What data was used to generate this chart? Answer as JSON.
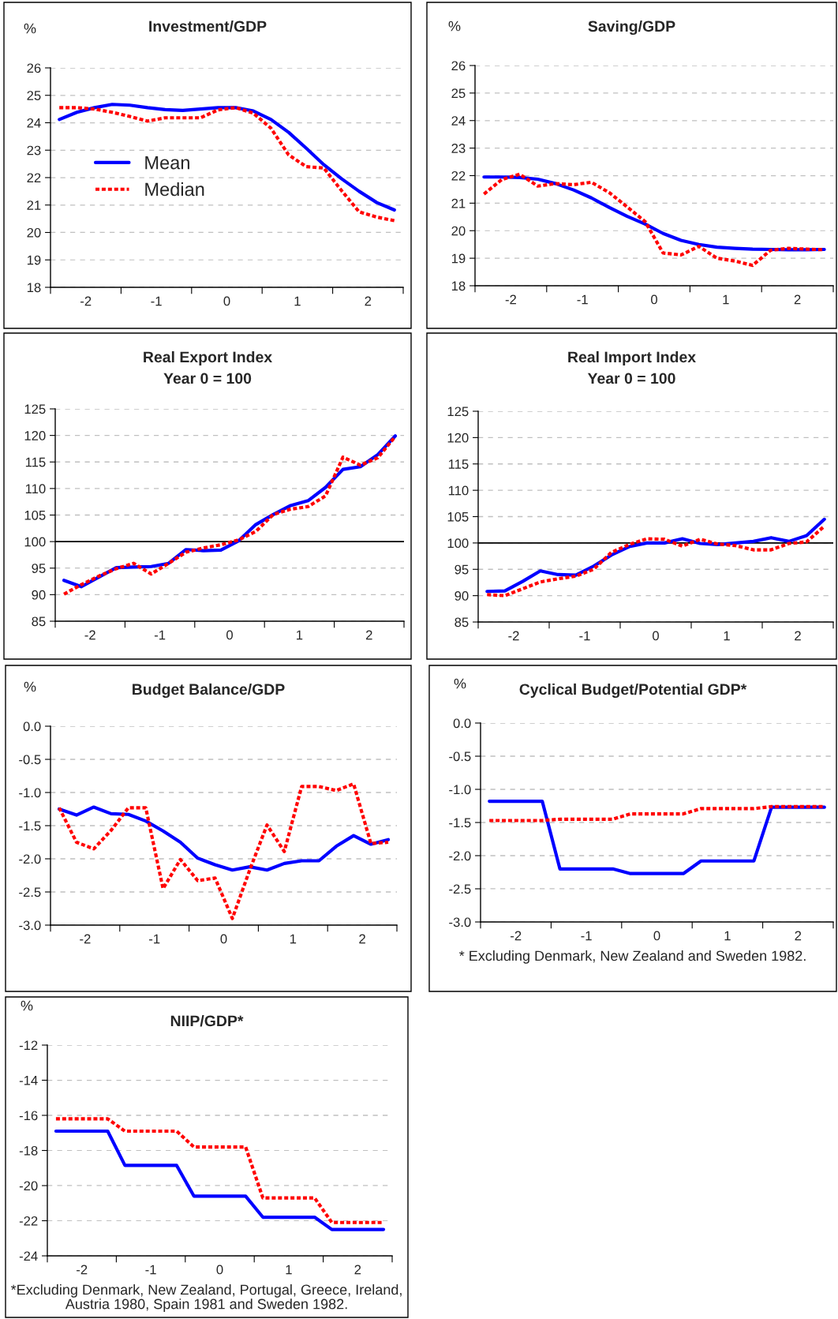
{
  "chart_data": [
    {
      "type": "line",
      "title": "Investment/GDP",
      "ylabel": "%",
      "legend": "center left",
      "grid": "y",
      "x": [
        -2.375,
        -2.125,
        -1.875,
        -1.625,
        -1.375,
        -1.125,
        -0.875,
        -0.625,
        -0.375,
        -0.125,
        0.125,
        0.375,
        0.625,
        0.875,
        1.125,
        1.375,
        1.625,
        1.875,
        2.125,
        2.375
      ],
      "xlim": [
        -2.5,
        2.5
      ],
      "xticks": [
        {
          "value": -2.5,
          "label": null
        },
        {
          "value": -1.5,
          "label": null
        },
        {
          "value": -0.5,
          "label": null
        },
        {
          "value": 0.5,
          "label": null
        },
        {
          "value": 1.5,
          "label": null
        },
        {
          "value": 2.5,
          "label": null
        },
        -2,
        -1,
        0,
        1,
        2
      ],
      "ylim": [
        18,
        26
      ],
      "yticks": [
        18,
        19,
        20,
        21,
        22,
        23,
        24,
        25,
        26
      ],
      "series": [
        {
          "name": "Mean",
          "color": "#0000ff",
          "line_style": "solid",
          "values": [
            24.12,
            24.38,
            24.55,
            24.67,
            24.64,
            24.55,
            24.48,
            24.45,
            24.5,
            24.55,
            24.55,
            24.43,
            24.12,
            23.65,
            23.07,
            22.47,
            21.96,
            21.5,
            21.09,
            20.82
          ]
        },
        {
          "name": "Median",
          "color": "#ff0000",
          "line_style": "dashed",
          "values": [
            24.55,
            24.55,
            24.5,
            24.38,
            24.23,
            24.06,
            24.18,
            24.18,
            24.18,
            24.47,
            24.55,
            24.35,
            23.8,
            22.83,
            22.4,
            22.35,
            21.53,
            20.75,
            20.56,
            20.43
          ]
        }
      ]
    },
    {
      "type": "line",
      "title": "Saving/GDP",
      "ylabel": "%",
      "grid": "y",
      "x": [
        -2.375,
        -2.125,
        -1.875,
        -1.625,
        -1.375,
        -1.125,
        -0.875,
        -0.625,
        -0.375,
        -0.125,
        0.125,
        0.375,
        0.625,
        0.875,
        1.125,
        1.375,
        1.625,
        1.875,
        2.125,
        2.375
      ],
      "xlim": [
        -2.5,
        2.5
      ],
      "xticks": [
        {
          "value": -2.5,
          "label": null
        },
        {
          "value": -1.5,
          "label": null
        },
        {
          "value": -0.5,
          "label": null
        },
        {
          "value": 0.5,
          "label": null
        },
        {
          "value": 1.5,
          "label": null
        },
        {
          "value": 2.5,
          "label": null
        },
        -2,
        -1,
        0,
        1,
        2
      ],
      "ylim": [
        18,
        26
      ],
      "yticks": [
        18,
        19,
        20,
        21,
        22,
        23,
        24,
        25,
        26
      ],
      "series": [
        {
          "color": "#0000ff",
          "line_style": "solid",
          "values": [
            21.95,
            21.95,
            21.93,
            21.87,
            21.71,
            21.48,
            21.19,
            20.84,
            20.52,
            20.24,
            19.9,
            19.65,
            19.5,
            19.4,
            19.36,
            19.33,
            19.32,
            19.31,
            19.31,
            19.32
          ]
        },
        {
          "color": "#ff0000",
          "line_style": "dashed",
          "values": [
            21.33,
            21.86,
            22.05,
            21.62,
            21.71,
            21.67,
            21.76,
            21.38,
            20.86,
            20.33,
            19.19,
            19.12,
            19.43,
            19.0,
            18.9,
            18.74,
            19.29,
            19.36,
            19.33,
            19.31
          ]
        }
      ]
    },
    {
      "type": "line",
      "title": "Real Export Index",
      "subtitle": "Year 0 = 100",
      "grid": "y",
      "x": [
        -2.375,
        -2.125,
        -1.875,
        -1.625,
        -1.375,
        -1.125,
        -0.875,
        -0.625,
        -0.375,
        -0.125,
        0.125,
        0.375,
        0.625,
        0.875,
        1.125,
        1.375,
        1.625,
        1.875,
        2.125,
        2.375
      ],
      "xlim": [
        -2.5,
        2.5
      ],
      "xticks": [
        {
          "value": -2.5,
          "label": null
        },
        {
          "value": -1.5,
          "label": null
        },
        {
          "value": -0.5,
          "label": null
        },
        {
          "value": 0.5,
          "label": null
        },
        {
          "value": 1.5,
          "label": null
        },
        {
          "value": 2.5,
          "label": null
        },
        -2,
        -1,
        0,
        1,
        2
      ],
      "ylim": [
        85,
        125
      ],
      "yticks": [
        85,
        90,
        95,
        100,
        105,
        110,
        115,
        120,
        125
      ],
      "ref_lines": [
        {
          "axis": "y",
          "value": 100,
          "color": "#000000"
        }
      ],
      "series": [
        {
          "color": "#0000ff",
          "line_style": "solid",
          "values": [
            92.7,
            91.5,
            93.3,
            95.1,
            95.2,
            95.3,
            95.9,
            98.5,
            98.3,
            98.4,
            100.1,
            103.2,
            105.1,
            106.8,
            107.7,
            110.2,
            113.6,
            114.1,
            116.4,
            119.9
          ]
        },
        {
          "color": "#ff0000",
          "line_style": "dashed",
          "values": [
            90.1,
            91.9,
            93.5,
            94.9,
            95.9,
            93.9,
            95.9,
            98.0,
            98.8,
            99.4,
            100.3,
            101.9,
            105.1,
            106.1,
            106.6,
            108.6,
            115.9,
            114.4,
            115.8,
            119.8
          ]
        }
      ]
    },
    {
      "type": "line",
      "title": "Real Import Index",
      "subtitle": "Year 0 = 100",
      "grid": "y",
      "x": [
        -2.375,
        -2.125,
        -1.875,
        -1.625,
        -1.375,
        -1.125,
        -0.875,
        -0.625,
        -0.375,
        -0.125,
        0.125,
        0.375,
        0.625,
        0.875,
        1.125,
        1.375,
        1.625,
        1.875,
        2.125,
        2.375
      ],
      "xlim": [
        -2.5,
        2.5
      ],
      "xticks": [
        {
          "value": -2.5,
          "label": null
        },
        {
          "value": -1.5,
          "label": null
        },
        {
          "value": -0.5,
          "label": null
        },
        {
          "value": 0.5,
          "label": null
        },
        {
          "value": 1.5,
          "label": null
        },
        {
          "value": 2.5,
          "label": null
        },
        -2,
        -1,
        0,
        1,
        2
      ],
      "ylim": [
        85,
        125
      ],
      "yticks": [
        85,
        90,
        95,
        100,
        105,
        110,
        115,
        120,
        125
      ],
      "ref_lines": [
        {
          "axis": "y",
          "value": 100,
          "color": "#000000"
        }
      ],
      "series": [
        {
          "color": "#0000ff",
          "line_style": "solid",
          "values": [
            90.8,
            90.9,
            92.7,
            94.7,
            94.0,
            93.9,
            95.6,
            97.7,
            99.3,
            100,
            100,
            100.8,
            99.9,
            99.7,
            100,
            100.3,
            101,
            100.3,
            101.4,
            104.5
          ]
        },
        {
          "color": "#ff0000",
          "line_style": "dashed",
          "values": [
            90.2,
            90.0,
            91.3,
            92.6,
            93.2,
            93.7,
            95.0,
            98.2,
            99.7,
            100.8,
            100.7,
            99.4,
            100.7,
            99.8,
            99.5,
            98.7,
            98.7,
            99.9,
            100.2,
            103.2
          ]
        }
      ]
    },
    {
      "type": "line",
      "title": "Budget Balance/GDP",
      "ylabel": "%",
      "grid": "y",
      "x": [
        -2.375,
        -2.125,
        -1.875,
        -1.625,
        -1.375,
        -1.125,
        -0.875,
        -0.625,
        -0.375,
        -0.125,
        0.125,
        0.375,
        0.625,
        0.875,
        1.125,
        1.375,
        1.625,
        1.875,
        2.125,
        2.375
      ],
      "xlim": [
        -2.5,
        2.5
      ],
      "xticks": [
        {
          "value": -2.5,
          "label": null
        },
        {
          "value": -1.5,
          "label": null
        },
        {
          "value": -0.5,
          "label": null
        },
        {
          "value": 0.5,
          "label": null
        },
        {
          "value": 1.5,
          "label": null
        },
        {
          "value": 2.5,
          "label": null
        },
        -2,
        -1,
        0,
        1,
        2
      ],
      "ylim": [
        -3,
        0
      ],
      "yticks": [
        {
          "value": -3,
          "label": "-3.0"
        },
        {
          "value": -2.5,
          "label": "-2.5"
        },
        {
          "value": -2,
          "label": "-2.0"
        },
        {
          "value": -1.5,
          "label": "-1.5"
        },
        {
          "value": -1,
          "label": "-1.0"
        },
        {
          "value": -0.5,
          "label": "-0.5"
        },
        {
          "value": 0,
          "label": "0.0"
        }
      ],
      "series": [
        {
          "color": "#0000ff",
          "line_style": "solid",
          "values": [
            -1.25,
            -1.34,
            -1.22,
            -1.32,
            -1.33,
            -1.43,
            -1.58,
            -1.75,
            -1.99,
            -2.09,
            -2.17,
            -2.12,
            -2.17,
            -2.07,
            -2.03,
            -2.03,
            -1.81,
            -1.65,
            -1.78,
            -1.71
          ]
        },
        {
          "color": "#ff0000",
          "line_style": "dashed",
          "values": [
            -1.23,
            -1.75,
            -1.85,
            -1.57,
            -1.23,
            -1.23,
            -2.45,
            -2.01,
            -2.33,
            -2.29,
            -2.9,
            -2.17,
            -1.49,
            -1.89,
            -0.91,
            -0.91,
            -0.97,
            -0.87,
            -1.77,
            -1.75
          ]
        }
      ]
    },
    {
      "type": "line",
      "title": "Cyclical Budget/Potential GDP*",
      "ylabel": "%",
      "grid": "y",
      "annotations": [
        "* Excluding Denmark, New Zealand and Sweden 1982."
      ],
      "x": [
        -2.375,
        -2.125,
        -1.875,
        -1.625,
        -1.375,
        -1.125,
        -0.875,
        -0.625,
        -0.375,
        -0.125,
        0.125,
        0.375,
        0.625,
        0.875,
        1.125,
        1.375,
        1.625,
        1.875,
        2.125,
        2.375
      ],
      "xlim": [
        -2.5,
        2.5
      ],
      "xticks": [
        {
          "value": -2.5,
          "label": null
        },
        {
          "value": -1.5,
          "label": null
        },
        {
          "value": -0.5,
          "label": null
        },
        {
          "value": 0.5,
          "label": null
        },
        {
          "value": 1.5,
          "label": null
        },
        {
          "value": 2.5,
          "label": null
        },
        -2,
        -1,
        0,
        1,
        2
      ],
      "ylim": [
        -3,
        0
      ],
      "yticks": [
        {
          "value": -3,
          "label": "-3.0"
        },
        {
          "value": -2.5,
          "label": "-2.5"
        },
        {
          "value": -2,
          "label": "-2.0"
        },
        {
          "value": -1.5,
          "label": "-1.5"
        },
        {
          "value": -1,
          "label": "-1.0"
        },
        {
          "value": -0.5,
          "label": "-0.5"
        },
        {
          "value": 0,
          "label": "0.0"
        }
      ],
      "series": [
        {
          "color": "#0000ff",
          "line_style": "solid",
          "values": [
            -1.18,
            -1.18,
            -1.18,
            -1.18,
            -2.2,
            -2.2,
            -2.2,
            -2.2,
            -2.27,
            -2.27,
            -2.27,
            -2.27,
            -2.08,
            -2.08,
            -2.08,
            -2.08,
            -1.27,
            -1.27,
            -1.27,
            -1.27
          ]
        },
        {
          "color": "#ff0000",
          "line_style": "dashed",
          "values": [
            -1.47,
            -1.47,
            -1.47,
            -1.47,
            -1.45,
            -1.45,
            -1.45,
            -1.45,
            -1.37,
            -1.37,
            -1.37,
            -1.37,
            -1.29,
            -1.29,
            -1.29,
            -1.29,
            -1.26,
            -1.26,
            -1.26,
            -1.26
          ]
        }
      ]
    },
    {
      "type": "line",
      "title": "NIIP/GDP*",
      "ylabel": "%",
      "grid": "y",
      "annotations": [
        "*Excluding Denmark, New Zealand, Portugal, Greece, Ireland, Austria 1980, Spain 1981 and Sweden 1982."
      ],
      "x": [
        -2.375,
        -2.125,
        -1.875,
        -1.625,
        -1.375,
        -1.125,
        -0.875,
        -0.625,
        -0.375,
        -0.125,
        0.125,
        0.375,
        0.625,
        0.875,
        1.125,
        1.375,
        1.625,
        1.875,
        2.125,
        2.375
      ],
      "xlim": [
        -2.5,
        2.5
      ],
      "xticks": [
        {
          "value": -2.5,
          "label": null
        },
        {
          "value": -1.5,
          "label": null
        },
        {
          "value": -0.5,
          "label": null
        },
        {
          "value": 0.5,
          "label": null
        },
        {
          "value": 1.5,
          "label": null
        },
        {
          "value": 2.5,
          "label": null
        },
        -2,
        -1,
        0,
        1,
        2
      ],
      "ylim": [
        -24,
        -12
      ],
      "yticks": [
        -24,
        -22,
        -20,
        -18,
        -16,
        -14,
        -12
      ],
      "series": [
        {
          "color": "#0000ff",
          "line_style": "solid",
          "values": [
            -16.9,
            -16.9,
            -16.9,
            -16.9,
            -18.85,
            -18.85,
            -18.85,
            -18.85,
            -20.6,
            -20.6,
            -20.6,
            -20.6,
            -21.8,
            -21.8,
            -21.8,
            -21.8,
            -22.5,
            -22.5,
            -22.5,
            -22.5
          ]
        },
        {
          "color": "#ff0000",
          "line_style": "dashed",
          "values": [
            -16.2,
            -16.2,
            -16.2,
            -16.2,
            -16.9,
            -16.9,
            -16.9,
            -16.9,
            -17.8,
            -17.8,
            -17.8,
            -17.8,
            -20.7,
            -20.7,
            -20.7,
            -20.7,
            -22.1,
            -22.1,
            -22.1,
            -22.1
          ]
        }
      ]
    }
  ]
}
